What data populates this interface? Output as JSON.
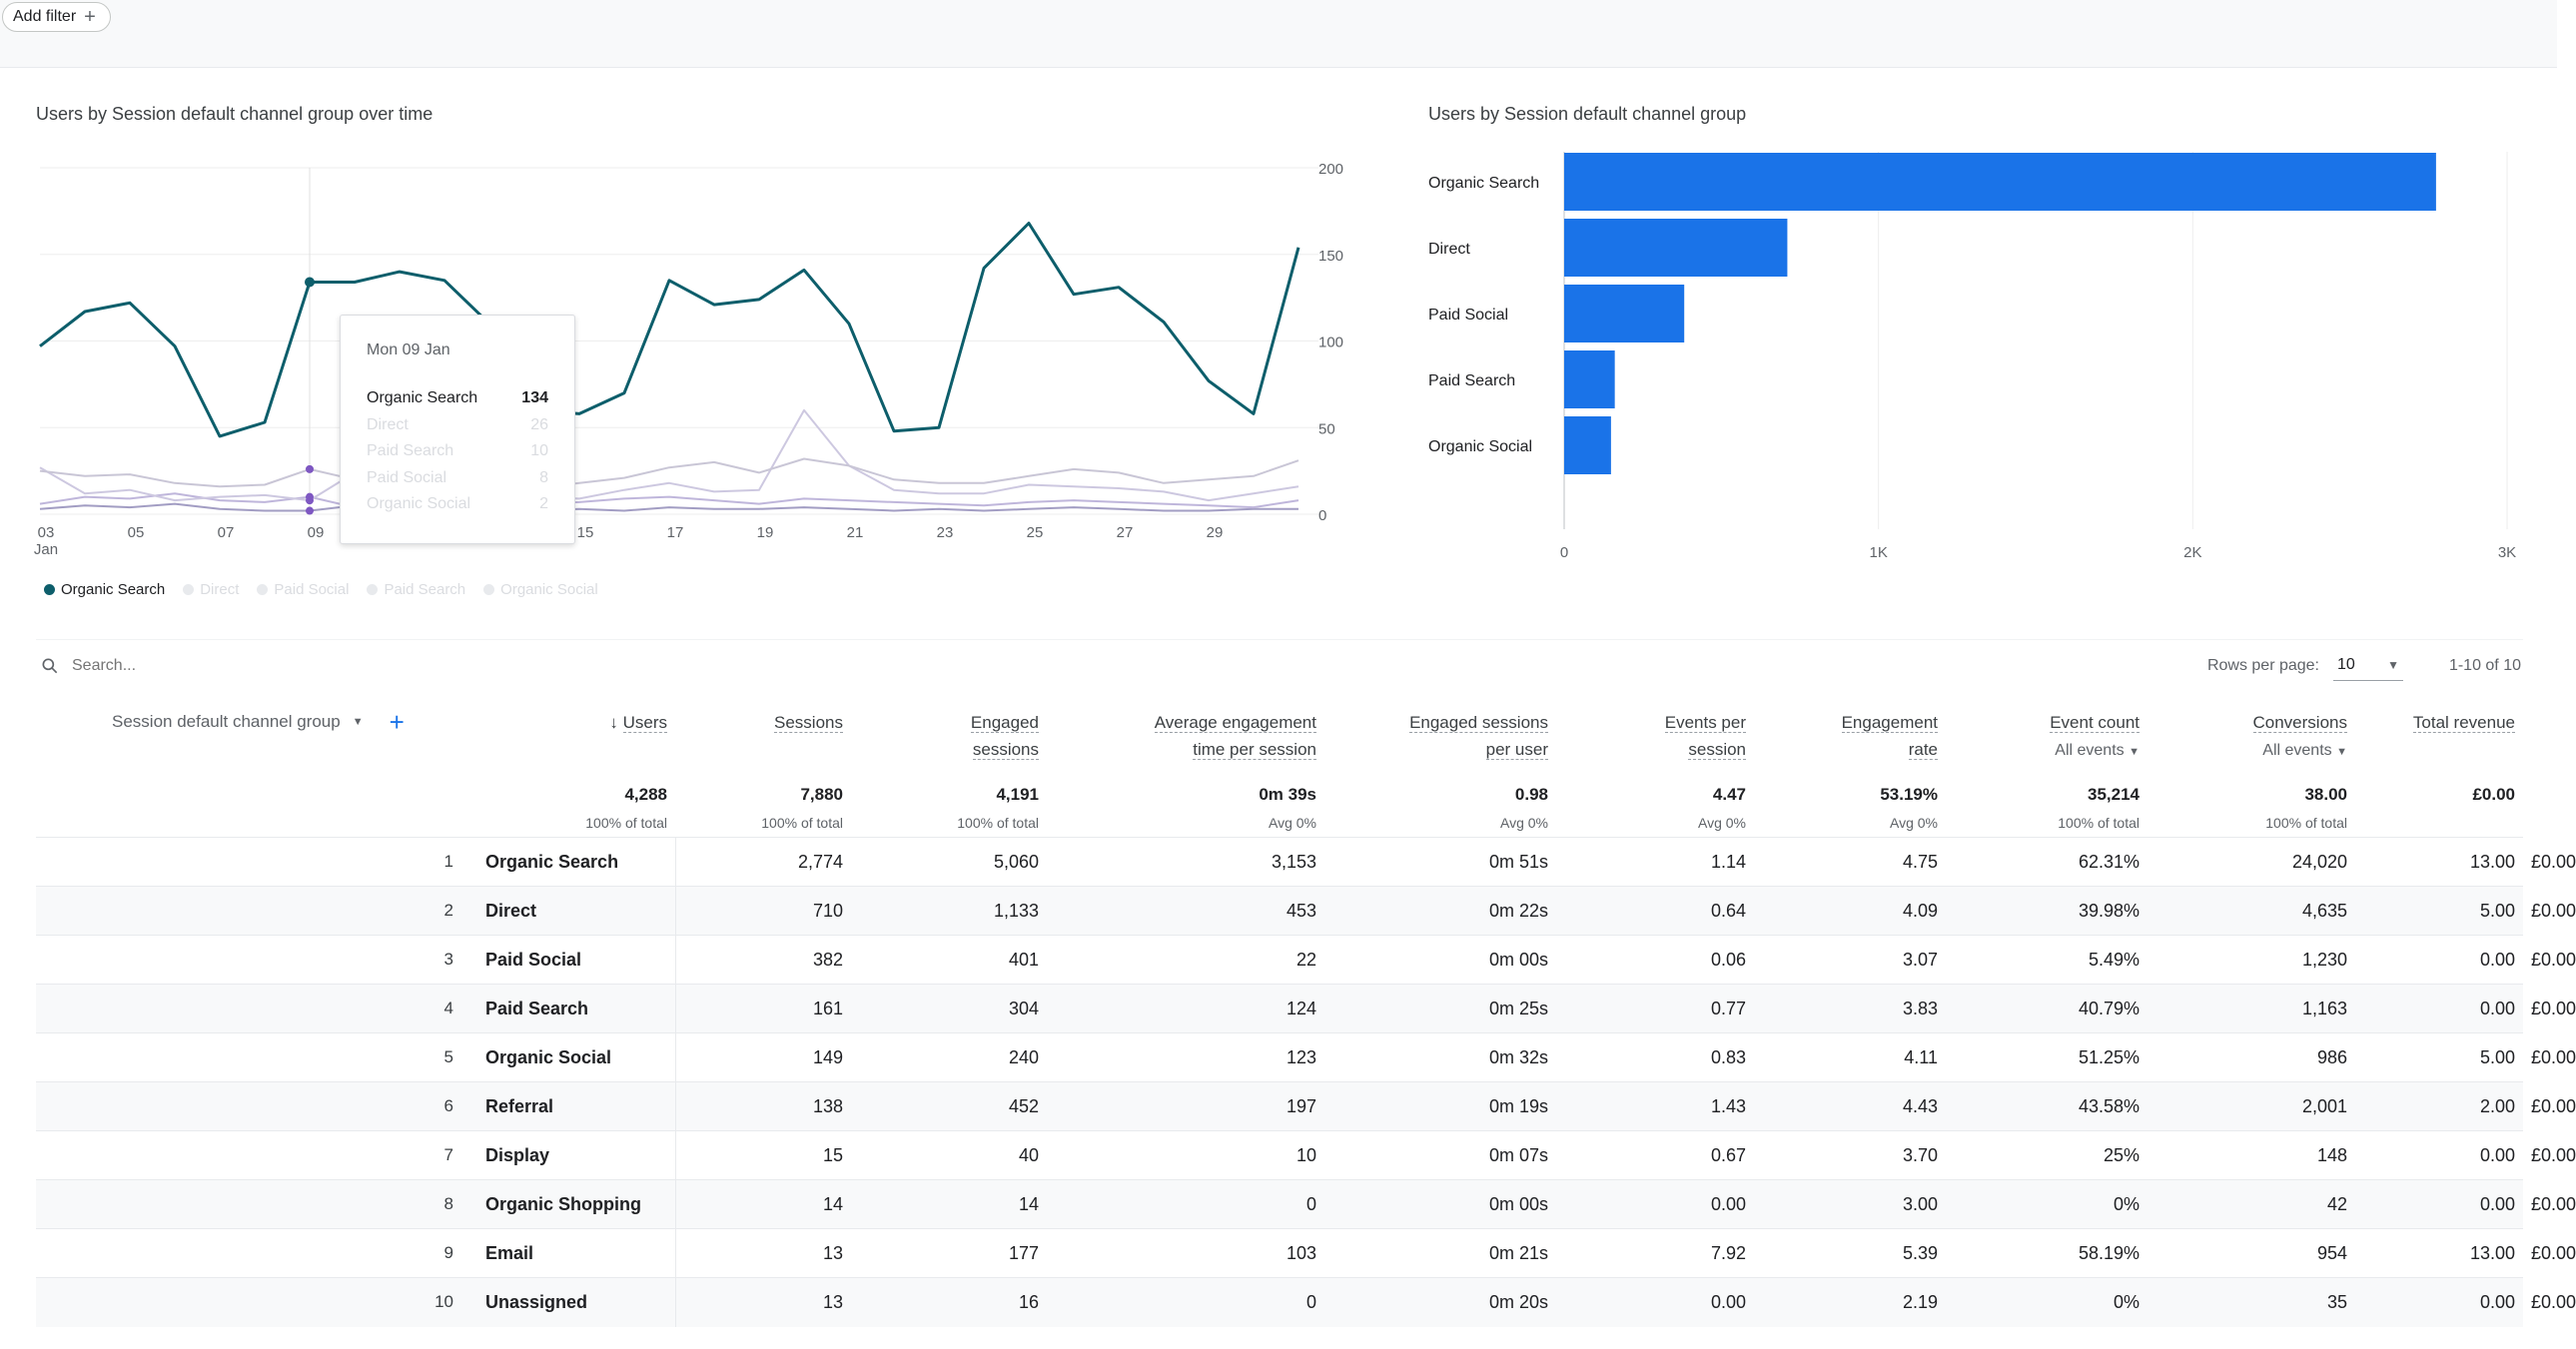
{
  "filter": {
    "add_label": "Add filter"
  },
  "line_chart": {
    "title": "Users by Session default channel group over time",
    "legend": [
      "Organic Search",
      "Direct",
      "Paid Social",
      "Paid Search",
      "Organic Social"
    ],
    "tooltip": {
      "date": "Mon 09 Jan",
      "rows": [
        {
          "label": "Organic Search",
          "value": "134"
        },
        {
          "label": "Direct",
          "value": "26"
        },
        {
          "label": "Paid Search",
          "value": "10"
        },
        {
          "label": "Paid Social",
          "value": "8"
        },
        {
          "label": "Organic Social",
          "value": "2"
        }
      ]
    }
  },
  "bar_chart": {
    "title": "Users by Session default channel group"
  },
  "chart_data": [
    {
      "type": "line",
      "title": "Users by Session default channel group over time",
      "x": [
        "03 Jan",
        "04",
        "05",
        "06",
        "07",
        "08",
        "09",
        "10",
        "11",
        "12",
        "13",
        "14",
        "15",
        "16",
        "17",
        "18",
        "19",
        "20",
        "21",
        "22",
        "23",
        "24",
        "25",
        "26",
        "27",
        "28",
        "29",
        "30",
        "31"
      ],
      "xticks": [
        "03\nJan",
        "05",
        "07",
        "09",
        "11",
        "13",
        "15",
        "17",
        "19",
        "21",
        "23",
        "25",
        "27",
        "29"
      ],
      "ylim": [
        0,
        200
      ],
      "yticks": [
        0,
        50,
        100,
        150,
        200
      ],
      "y_axis_side": "right",
      "series": [
        {
          "name": "Organic Search",
          "color": "#0d5e6b",
          "values": [
            97,
            117,
            122,
            97,
            45,
            53,
            134,
            134,
            140,
            135,
            110,
            60,
            58,
            70,
            135,
            121,
            124,
            141,
            110,
            48,
            50,
            142,
            168,
            127,
            131,
            111,
            77,
            58,
            154
          ]
        },
        {
          "name": "Direct",
          "color": "#c9c6d6",
          "values": [
            25,
            22,
            23,
            18,
            16,
            17,
            26,
            20,
            19,
            18,
            17,
            15,
            18,
            21,
            27,
            30,
            24,
            32,
            28,
            20,
            18,
            18,
            22,
            26,
            24,
            18,
            20,
            22,
            31
          ]
        },
        {
          "name": "Paid Social",
          "color": "#cdc8e0",
          "values": [
            27,
            12,
            14,
            8,
            10,
            11,
            8,
            24,
            20,
            16,
            11,
            10,
            9,
            14,
            18,
            13,
            14,
            60,
            28,
            14,
            12,
            12,
            17,
            16,
            15,
            13,
            8,
            12,
            16
          ]
        },
        {
          "name": "Paid Search",
          "color": "#bfb6db",
          "values": [
            6,
            10,
            9,
            12,
            8,
            7,
            10,
            4,
            6,
            5,
            8,
            6,
            7,
            9,
            10,
            8,
            6,
            9,
            8,
            7,
            6,
            5,
            7,
            8,
            7,
            6,
            5,
            4,
            8
          ]
        },
        {
          "name": "Organic Social",
          "color": "#a29dc3",
          "values": [
            3,
            5,
            4,
            6,
            3,
            2,
            2,
            5,
            4,
            4,
            3,
            2,
            3,
            2,
            4,
            3,
            3,
            4,
            3,
            2,
            3,
            2,
            3,
            4,
            3,
            2,
            2,
            3,
            3
          ]
        }
      ],
      "legend_position": "bottom-left",
      "grid": true
    },
    {
      "type": "bar",
      "orientation": "horizontal",
      "title": "Users by Session default channel group",
      "categories": [
        "Organic Search",
        "Direct",
        "Paid Social",
        "Paid Search",
        "Organic Social"
      ],
      "values": [
        2774,
        710,
        382,
        161,
        149
      ],
      "xlim": [
        0,
        3000
      ],
      "xticks": [
        "0",
        "1K",
        "2K",
        "3K"
      ],
      "color": "#1a73e8",
      "grid": true
    }
  ],
  "toolbar": {
    "search_placeholder": "Search...",
    "rows_per_page_label": "Rows per page:",
    "rows_per_page_value": "10",
    "pagination": "1-10 of 10"
  },
  "table": {
    "dimension_header": "Session default channel group",
    "headers": [
      {
        "line1": "Users",
        "line2": "",
        "sorted": true
      },
      {
        "line1": "Sessions",
        "line2": ""
      },
      {
        "line1": "Engaged",
        "line2": "sessions"
      },
      {
        "line1": "Average engagement",
        "line2": "time per session"
      },
      {
        "line1": "Engaged sessions",
        "line2": "per user"
      },
      {
        "line1": "Events per",
        "line2": "session"
      },
      {
        "line1": "Engagement",
        "line2": "rate"
      },
      {
        "line1": "Event count",
        "line2": "",
        "sub": "All events"
      },
      {
        "line1": "Conversions",
        "line2": "",
        "sub": "All events"
      },
      {
        "line1": "Total revenue",
        "line2": ""
      }
    ],
    "totals": [
      {
        "value": "4,288",
        "sub": "100% of total"
      },
      {
        "value": "7,880",
        "sub": "100% of total"
      },
      {
        "value": "4,191",
        "sub": "100% of total"
      },
      {
        "value": "0m 39s",
        "sub": "Avg 0%"
      },
      {
        "value": "0.98",
        "sub": "Avg 0%"
      },
      {
        "value": "4.47",
        "sub": "Avg 0%"
      },
      {
        "value": "53.19%",
        "sub": "Avg 0%"
      },
      {
        "value": "35,214",
        "sub": "100% of total"
      },
      {
        "value": "38.00",
        "sub": "100% of total"
      },
      {
        "value": "£0.00",
        "sub": ""
      }
    ],
    "rows": [
      {
        "idx": "1",
        "name": "Organic Search",
        "cells": [
          "2,774",
          "5,060",
          "3,153",
          "0m 51s",
          "1.14",
          "4.75",
          "62.31%",
          "24,020",
          "13.00",
          "£0.00"
        ]
      },
      {
        "idx": "2",
        "name": "Direct",
        "cells": [
          "710",
          "1,133",
          "453",
          "0m 22s",
          "0.64",
          "4.09",
          "39.98%",
          "4,635",
          "5.00",
          "£0.00"
        ]
      },
      {
        "idx": "3",
        "name": "Paid Social",
        "cells": [
          "382",
          "401",
          "22",
          "0m 00s",
          "0.06",
          "3.07",
          "5.49%",
          "1,230",
          "0.00",
          "£0.00"
        ]
      },
      {
        "idx": "4",
        "name": "Paid Search",
        "cells": [
          "161",
          "304",
          "124",
          "0m 25s",
          "0.77",
          "3.83",
          "40.79%",
          "1,163",
          "0.00",
          "£0.00"
        ]
      },
      {
        "idx": "5",
        "name": "Organic Social",
        "cells": [
          "149",
          "240",
          "123",
          "0m 32s",
          "0.83",
          "4.11",
          "51.25%",
          "986",
          "5.00",
          "£0.00"
        ]
      },
      {
        "idx": "6",
        "name": "Referral",
        "cells": [
          "138",
          "452",
          "197",
          "0m 19s",
          "1.43",
          "4.43",
          "43.58%",
          "2,001",
          "2.00",
          "£0.00"
        ]
      },
      {
        "idx": "7",
        "name": "Display",
        "cells": [
          "15",
          "40",
          "10",
          "0m 07s",
          "0.67",
          "3.70",
          "25%",
          "148",
          "0.00",
          "£0.00"
        ]
      },
      {
        "idx": "8",
        "name": "Organic Shopping",
        "cells": [
          "14",
          "14",
          "0",
          "0m 00s",
          "0.00",
          "3.00",
          "0%",
          "42",
          "0.00",
          "£0.00"
        ]
      },
      {
        "idx": "9",
        "name": "Email",
        "cells": [
          "13",
          "177",
          "103",
          "0m 21s",
          "7.92",
          "5.39",
          "58.19%",
          "954",
          "13.00",
          "£0.00"
        ]
      },
      {
        "idx": "10",
        "name": "Unassigned",
        "cells": [
          "13",
          "16",
          "0",
          "0m 20s",
          "0.00",
          "2.19",
          "0%",
          "35",
          "0.00",
          "£0.00"
        ]
      }
    ]
  }
}
